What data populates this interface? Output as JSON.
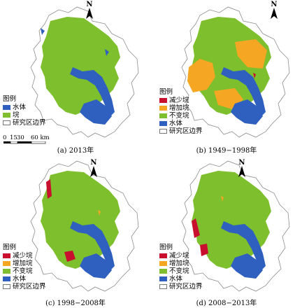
{
  "colors": {
    "water": "#2f5fbf",
    "pond": "#7dbf2c",
    "decrease": "#c8102e",
    "increase": "#f5a623",
    "unchanged": "#7dbf2c",
    "boundary": "#8c8c8c",
    "land": "#ffffff"
  },
  "panels": [
    {
      "id": "a",
      "caption": "(a) 2013年",
      "legend_title": "图例",
      "legend": [
        {
          "label": "水体",
          "color": "#2f5fbf",
          "icon": "water-swatch"
        },
        {
          "label": "垸",
          "color": "#7dbf2c",
          "icon": "pond-swatch"
        },
        {
          "label": "研究区边界",
          "color": "#ffffff",
          "icon": "boundary-swatch"
        }
      ],
      "scale": {
        "ticks": [
          "0",
          "15",
          "30",
          "60 km"
        ]
      }
    },
    {
      "id": "b",
      "caption": "(b) 1949−1998年",
      "legend_title": "图例",
      "legend": [
        {
          "label": "减少垸",
          "color": "#c8102e",
          "icon": "decrease-swatch"
        },
        {
          "label": "增加垸",
          "color": "#f5a623",
          "icon": "increase-swatch"
        },
        {
          "label": "不变垸",
          "color": "#7dbf2c",
          "icon": "unchanged-swatch"
        },
        {
          "label": "水体",
          "color": "#2f5fbf",
          "icon": "water-swatch"
        },
        {
          "label": "研究区边界",
          "color": "#ffffff",
          "icon": "boundary-swatch"
        }
      ]
    },
    {
      "id": "c",
      "caption": "(c) 1998−2008年",
      "legend_title": "图例",
      "legend": [
        {
          "label": "减少垸",
          "color": "#c8102e",
          "icon": "decrease-swatch"
        },
        {
          "label": "增加垸",
          "color": "#f5a623",
          "icon": "increase-swatch"
        },
        {
          "label": "不变垸",
          "color": "#7dbf2c",
          "icon": "unchanged-swatch"
        },
        {
          "label": "水体",
          "color": "#2f5fbf",
          "icon": "water-swatch"
        },
        {
          "label": "研究区边界",
          "color": "#ffffff",
          "icon": "boundary-swatch"
        }
      ]
    },
    {
      "id": "d",
      "caption": "(d) 2008−2013年",
      "legend_title": "图例",
      "legend": [
        {
          "label": "减少垸",
          "color": "#c8102e",
          "icon": "decrease-swatch"
        },
        {
          "label": "增加垸",
          "color": "#f5a623",
          "icon": "increase-swatch"
        },
        {
          "label": "不变垸",
          "color": "#7dbf2c",
          "icon": "unchanged-swatch"
        },
        {
          "label": "水体",
          "color": "#2f5fbf",
          "icon": "water-swatch"
        },
        {
          "label": "研究区边界",
          "color": "#ffffff",
          "icon": "boundary-swatch"
        }
      ]
    }
  ],
  "north_label": "N"
}
